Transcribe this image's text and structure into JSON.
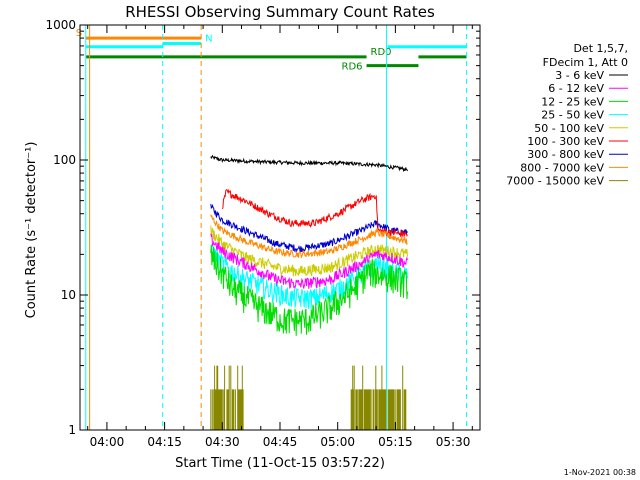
{
  "chart_data": {
    "type": "line",
    "title": "RHESSI Observing Summary Count Rates",
    "xlabel": "Start Time (11-Oct-15 03:57:22)",
    "ylabel": "Count Rate (s⁻¹ detector⁻¹)",
    "yscale": "log",
    "ylim": [
      1,
      1000
    ],
    "xlim_minutes_after_0400": [
      -7,
      97
    ],
    "x_ticks": [
      "04:00",
      "04:15",
      "04:30",
      "04:45",
      "05:00",
      "05:15",
      "05:30"
    ],
    "y_ticks": [
      "1",
      "10",
      "100",
      "1000"
    ],
    "footer_date": "1-Nov-2021 00:38",
    "legend": {
      "header_lines": [
        "Det 1,5,7,",
        "FDecim 1, Att 0"
      ],
      "position": "right"
    },
    "series": [
      {
        "name": "3 - 6 keV",
        "color": "#000000",
        "x": [
          27,
          30,
          40,
          50,
          60,
          70,
          78.3
        ],
        "values": [
          105,
          100,
          97,
          95,
          95,
          92,
          85
        ]
      },
      {
        "name": "6 - 12 keV",
        "color": "#ff00ff",
        "x": [
          27,
          30,
          36,
          44,
          50,
          58,
          66,
          70,
          74,
          78.3
        ],
        "values": [
          26,
          21,
          17,
          13,
          12,
          13,
          17,
          20,
          19,
          17
        ]
      },
      {
        "name": "12 - 25 keV",
        "color": "#00dd00",
        "x": [
          27,
          29,
          33,
          40,
          46,
          52,
          58,
          64,
          68,
          72,
          76,
          78.3
        ],
        "values": [
          20,
          16,
          11,
          8,
          6.5,
          6.5,
          8,
          11,
          15,
          14,
          13,
          12
        ]
      },
      {
        "name": "25 - 50 keV",
        "color": "#00ffff",
        "x": [
          27,
          29,
          34,
          42,
          48,
          54,
          60,
          66,
          70,
          73,
          78.3
        ],
        "values": [
          22,
          18,
          14,
          11,
          9.5,
          9.5,
          11,
          14,
          17,
          15,
          14
        ]
      },
      {
        "name": "50 - 100 keV",
        "color": "#cccc00",
        "x": [
          27,
          30,
          36,
          44,
          50,
          58,
          66,
          70,
          74,
          78.3
        ],
        "values": [
          30,
          24,
          19,
          16,
          15,
          16,
          20,
          22,
          21,
          20
        ]
      },
      {
        "name": "100 - 300 keV",
        "color": "#ff0000",
        "x": [
          30,
          31,
          36,
          42,
          48,
          54,
          60,
          66,
          70,
          70.5,
          78.3
        ],
        "values": [
          45,
          58,
          50,
          40,
          34,
          34,
          40,
          50,
          55,
          30,
          28
        ]
      },
      {
        "name": "300 - 800 keV",
        "color": "#0000cc",
        "x": [
          27,
          30,
          36,
          44,
          50,
          58,
          66,
          70,
          74,
          78.3
        ],
        "values": [
          45,
          36,
          30,
          24,
          22,
          24,
          30,
          34,
          30,
          29
        ]
      },
      {
        "name": "800 - 7000 keV",
        "color": "#ff8800",
        "x": [
          27,
          30,
          36,
          44,
          50,
          58,
          66,
          70,
          74,
          78.3
        ],
        "values": [
          38,
          30,
          25,
          21,
          20,
          21,
          26,
          29,
          27,
          25
        ]
      },
      {
        "name": "7000 - 15000 keV",
        "color": "#888800",
        "x": [
          27,
          35,
          64,
          78.3
        ],
        "values": [
          2,
          2,
          2,
          2
        ]
      }
    ],
    "annotations": {
      "top_bars": [
        {
          "label": "S",
          "color": "#ff8800",
          "x_start": -5.5,
          "x_end": 24.5,
          "y": 800
        },
        {
          "label": "N",
          "color": "#00ffff",
          "x_start": -5.5,
          "x_end": 14.5,
          "y": 690
        },
        {
          "label": "N",
          "color": "#00ffff",
          "x_start": 14.5,
          "x_end": 24.5,
          "y": 730
        },
        {
          "label": "",
          "color": "#00ffff",
          "x_start": 73,
          "x_end": 93.5,
          "y": 690
        },
        {
          "label": "RD0",
          "color": "#008800",
          "x_start": -5.5,
          "x_end": 67.5,
          "y": 580
        },
        {
          "label": "",
          "color": "#008800",
          "x_start": 81,
          "x_end": 93.5,
          "y": 580
        },
        {
          "label": "RD6",
          "color": "#008800",
          "x_start": 67.5,
          "x_end": 81,
          "y": 500
        }
      ],
      "vertical_lines": [
        {
          "color": "#00ffff",
          "style": "solid",
          "x": -5.5
        },
        {
          "color": "#ff8800",
          "style": "solid",
          "x": -4.5
        },
        {
          "color": "#00ffff",
          "style": "dashed",
          "x": 14.5
        },
        {
          "color": "#ff8800",
          "style": "dashed",
          "x": 24.5
        },
        {
          "color": "#00ffff",
          "style": "solid",
          "x": 72.7
        },
        {
          "color": "#00ffff",
          "style": "dashed",
          "x": 93.5
        }
      ]
    }
  }
}
